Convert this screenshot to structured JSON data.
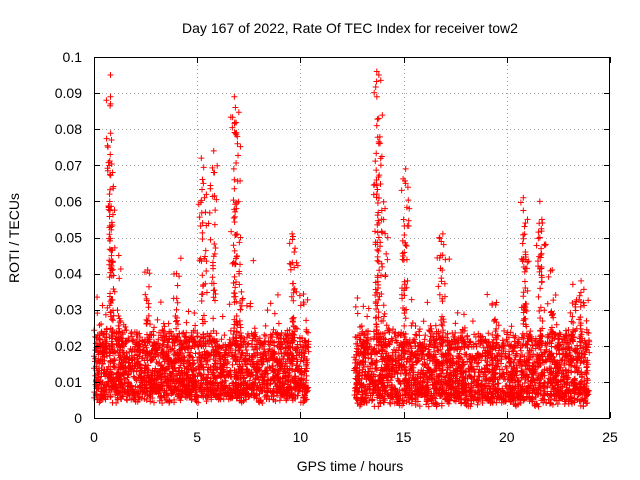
{
  "chart_data": {
    "type": "scatter",
    "title": "Day 167 of 2022, Rate Of TEC Index for receiver tow2",
    "xlabel": "GPS time / hours",
    "ylabel": "ROTI / TECUs",
    "xlim": [
      0,
      25
    ],
    "ylim": [
      0,
      0.1
    ],
    "x_ticks": [
      "0",
      "5",
      "10",
      "15",
      "20",
      "25"
    ],
    "x_tick_values": [
      0,
      5,
      10,
      15,
      20,
      25
    ],
    "y_ticks": [
      "0",
      "0.01",
      "0.02",
      "0.03",
      "0.04",
      "0.05",
      "0.06",
      "0.07",
      "0.08",
      "0.09",
      "0.1"
    ],
    "y_tick_values": [
      0,
      0.01,
      0.02,
      0.03,
      0.04,
      0.05,
      0.06,
      0.07,
      0.08,
      0.09,
      0.1
    ],
    "grid": true,
    "marker": "+",
    "color": "#ff0000",
    "data_gap_hours": [
      10.4,
      12.6
    ],
    "series": [
      {
        "name": "ROTI",
        "segments": [
          {
            "x_range": [
              0,
              10.4
            ],
            "baseline": [
              0.008,
              0.025
            ]
          },
          {
            "x_range": [
              12.6,
              24.0
            ],
            "baseline": [
              0.007,
              0.025
            ]
          }
        ],
        "peaks": [
          {
            "x": 0.8,
            "y": 0.095
          },
          {
            "x": 0.8,
            "y": 0.089
          },
          {
            "x": 0.8,
            "y": 0.087
          },
          {
            "x": 0.85,
            "y": 0.077
          },
          {
            "x": 0.9,
            "y": 0.068
          },
          {
            "x": 0.85,
            "y": 0.053
          },
          {
            "x": 1.2,
            "y": 0.045
          },
          {
            "x": 2.6,
            "y": 0.041
          },
          {
            "x": 4.0,
            "y": 0.04
          },
          {
            "x": 5.2,
            "y": 0.072
          },
          {
            "x": 5.3,
            "y": 0.065
          },
          {
            "x": 5.4,
            "y": 0.057
          },
          {
            "x": 5.8,
            "y": 0.074
          },
          {
            "x": 5.8,
            "y": 0.068
          },
          {
            "x": 6.8,
            "y": 0.089
          },
          {
            "x": 6.85,
            "y": 0.086
          },
          {
            "x": 6.9,
            "y": 0.079
          },
          {
            "x": 6.8,
            "y": 0.066
          },
          {
            "x": 6.9,
            "y": 0.058
          },
          {
            "x": 7.1,
            "y": 0.05
          },
          {
            "x": 9.6,
            "y": 0.051
          },
          {
            "x": 9.7,
            "y": 0.046
          },
          {
            "x": 13.7,
            "y": 0.096
          },
          {
            "x": 13.8,
            "y": 0.095
          },
          {
            "x": 13.7,
            "y": 0.081
          },
          {
            "x": 13.8,
            "y": 0.076
          },
          {
            "x": 13.9,
            "y": 0.07
          },
          {
            "x": 13.7,
            "y": 0.062
          },
          {
            "x": 14.1,
            "y": 0.058
          },
          {
            "x": 15.1,
            "y": 0.069
          },
          {
            "x": 15.1,
            "y": 0.065
          },
          {
            "x": 15.0,
            "y": 0.055
          },
          {
            "x": 16.9,
            "y": 0.051
          },
          {
            "x": 16.8,
            "y": 0.045
          },
          {
            "x": 19.5,
            "y": 0.032
          },
          {
            "x": 20.8,
            "y": 0.061
          },
          {
            "x": 20.9,
            "y": 0.054
          },
          {
            "x": 20.9,
            "y": 0.046
          },
          {
            "x": 21.6,
            "y": 0.06
          },
          {
            "x": 21.7,
            "y": 0.055
          },
          {
            "x": 21.6,
            "y": 0.05
          },
          {
            "x": 22.2,
            "y": 0.041
          },
          {
            "x": 23.2,
            "y": 0.037
          },
          {
            "x": 23.6,
            "y": 0.038
          }
        ]
      }
    ]
  }
}
